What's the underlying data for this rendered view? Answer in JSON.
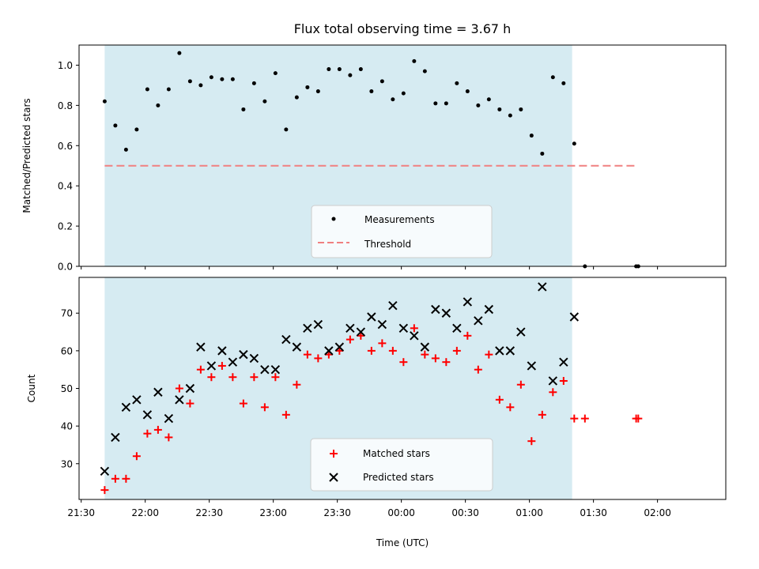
{
  "chart_data": [
    {
      "type": "scatter",
      "title": "Flux total observing time = 3.67 h",
      "ylabel": "Matched/Predicted stars",
      "xlabel": "",
      "ylim": [
        0,
        1.1
      ],
      "yticks": [
        "0.0",
        "0.2",
        "0.4",
        "0.6",
        "0.8",
        "1.0"
      ],
      "ytick_values": [
        0,
        0.2,
        0.4,
        0.6,
        0.8,
        1.0
      ],
      "observing_window": {
        "start": "21:41",
        "end": "01:20"
      },
      "threshold": {
        "name": "Threshold",
        "value": 0.5,
        "x_start": "21:41",
        "x_end": "01:50",
        "color": "#f08080"
      },
      "legend": {
        "position": "bottom-center",
        "entries": [
          "Measurements",
          "Threshold"
        ]
      },
      "series": [
        {
          "name": "Measurements",
          "color": "#000000",
          "marker": "dot",
          "points": [
            [
              "21:41",
              0.82
            ],
            [
              "21:46",
              0.7
            ],
            [
              "21:51",
              0.58
            ],
            [
              "21:56",
              0.68
            ],
            [
              "22:01",
              0.88
            ],
            [
              "22:06",
              0.8
            ],
            [
              "22:11",
              0.88
            ],
            [
              "22:16",
              1.06
            ],
            [
              "22:21",
              0.92
            ],
            [
              "22:26",
              0.9
            ],
            [
              "22:31",
              0.94
            ],
            [
              "22:36",
              0.93
            ],
            [
              "22:41",
              0.93
            ],
            [
              "22:46",
              0.78
            ],
            [
              "22:51",
              0.91
            ],
            [
              "22:56",
              0.82
            ],
            [
              "23:01",
              0.96
            ],
            [
              "23:06",
              0.68
            ],
            [
              "23:11",
              0.84
            ],
            [
              "23:16",
              0.89
            ],
            [
              "23:21",
              0.87
            ],
            [
              "23:26",
              0.98
            ],
            [
              "23:31",
              0.98
            ],
            [
              "23:36",
              0.95
            ],
            [
              "23:41",
              0.98
            ],
            [
              "23:46",
              0.87
            ],
            [
              "23:51",
              0.92
            ],
            [
              "23:56",
              0.83
            ],
            [
              "00:01",
              0.86
            ],
            [
              "00:06",
              1.02
            ],
            [
              "00:11",
              0.97
            ],
            [
              "00:16",
              0.81
            ],
            [
              "00:21",
              0.81
            ],
            [
              "00:26",
              0.91
            ],
            [
              "00:31",
              0.87
            ],
            [
              "00:36",
              0.8
            ],
            [
              "00:41",
              0.83
            ],
            [
              "00:46",
              0.78
            ],
            [
              "00:51",
              0.75
            ],
            [
              "00:56",
              0.78
            ],
            [
              "01:01",
              0.65
            ],
            [
              "01:06",
              0.56
            ],
            [
              "01:11",
              0.94
            ],
            [
              "01:16",
              0.91
            ],
            [
              "01:21",
              0.61
            ],
            [
              "01:26",
              0.0
            ],
            [
              "01:50",
              0.0
            ],
            [
              "01:51",
              0.0
            ]
          ]
        }
      ]
    },
    {
      "type": "scatter",
      "title": "",
      "ylabel": "Count",
      "xlabel": "Time (UTC)",
      "ylim": [
        20.5,
        79.5
      ],
      "yticks": [
        "30",
        "40",
        "50",
        "60",
        "70"
      ],
      "ytick_values": [
        30,
        40,
        50,
        60,
        70
      ],
      "xticks": [
        "21:30",
        "22:00",
        "22:30",
        "23:00",
        "23:30",
        "00:00",
        "00:30",
        "01:00",
        "01:30",
        "02:00"
      ],
      "observing_window": {
        "start": "21:41",
        "end": "01:20"
      },
      "legend": {
        "position": "bottom-center",
        "entries": [
          "Matched stars",
          "Predicted stars"
        ]
      },
      "series": [
        {
          "name": "Matched stars",
          "color": "#ff0000",
          "marker": "plus",
          "points": [
            [
              "21:41",
              23
            ],
            [
              "21:46",
              26
            ],
            [
              "21:51",
              26
            ],
            [
              "21:56",
              32
            ],
            [
              "22:01",
              38
            ],
            [
              "22:06",
              39
            ],
            [
              "22:11",
              37
            ],
            [
              "22:16",
              50
            ],
            [
              "22:21",
              46
            ],
            [
              "22:26",
              55
            ],
            [
              "22:31",
              53
            ],
            [
              "22:36",
              56
            ],
            [
              "22:41",
              53
            ],
            [
              "22:46",
              46
            ],
            [
              "22:51",
              53
            ],
            [
              "22:56",
              45
            ],
            [
              "23:01",
              53
            ],
            [
              "23:06",
              43
            ],
            [
              "23:11",
              51
            ],
            [
              "23:16",
              59
            ],
            [
              "23:21",
              58
            ],
            [
              "23:26",
              59
            ],
            [
              "23:31",
              60
            ],
            [
              "23:36",
              63
            ],
            [
              "23:41",
              64
            ],
            [
              "23:46",
              60
            ],
            [
              "23:51",
              62
            ],
            [
              "23:56",
              60
            ],
            [
              "00:01",
              57
            ],
            [
              "00:06",
              66
            ],
            [
              "00:11",
              59
            ],
            [
              "00:16",
              58
            ],
            [
              "00:21",
              57
            ],
            [
              "00:26",
              60
            ],
            [
              "00:31",
              64
            ],
            [
              "00:36",
              55
            ],
            [
              "00:41",
              59
            ],
            [
              "00:46",
              47
            ],
            [
              "00:51",
              45
            ],
            [
              "00:56",
              51
            ],
            [
              "01:01",
              36
            ],
            [
              "01:06",
              43
            ],
            [
              "01:11",
              49
            ],
            [
              "01:16",
              52
            ],
            [
              "01:21",
              42
            ],
            [
              "01:26",
              42
            ],
            [
              "01:50",
              42
            ],
            [
              "01:51",
              42
            ]
          ]
        },
        {
          "name": "Predicted stars",
          "color": "#000000",
          "marker": "x",
          "points": [
            [
              "21:41",
              28
            ],
            [
              "21:46",
              37
            ],
            [
              "21:51",
              45
            ],
            [
              "21:56",
              47
            ],
            [
              "22:01",
              43
            ],
            [
              "22:06",
              49
            ],
            [
              "22:11",
              42
            ],
            [
              "22:16",
              47
            ],
            [
              "22:21",
              50
            ],
            [
              "22:26",
              61
            ],
            [
              "22:31",
              56
            ],
            [
              "22:36",
              60
            ],
            [
              "22:41",
              57
            ],
            [
              "22:46",
              59
            ],
            [
              "22:51",
              58
            ],
            [
              "22:56",
              55
            ],
            [
              "23:01",
              55
            ],
            [
              "23:06",
              63
            ],
            [
              "23:11",
              61
            ],
            [
              "23:16",
              66
            ],
            [
              "23:21",
              67
            ],
            [
              "23:26",
              60
            ],
            [
              "23:31",
              61
            ],
            [
              "23:36",
              66
            ],
            [
              "23:41",
              65
            ],
            [
              "23:46",
              69
            ],
            [
              "23:51",
              67
            ],
            [
              "23:56",
              72
            ],
            [
              "00:01",
              66
            ],
            [
              "00:06",
              64
            ],
            [
              "00:11",
              61
            ],
            [
              "00:16",
              71
            ],
            [
              "00:21",
              70
            ],
            [
              "00:26",
              66
            ],
            [
              "00:31",
              73
            ],
            [
              "00:36",
              68
            ],
            [
              "00:41",
              71
            ],
            [
              "00:46",
              60
            ],
            [
              "00:51",
              60
            ],
            [
              "00:56",
              65
            ],
            [
              "01:01",
              56
            ],
            [
              "01:06",
              77
            ],
            [
              "01:11",
              52
            ],
            [
              "01:16",
              57
            ],
            [
              "01:21",
              69
            ]
          ]
        }
      ]
    }
  ]
}
